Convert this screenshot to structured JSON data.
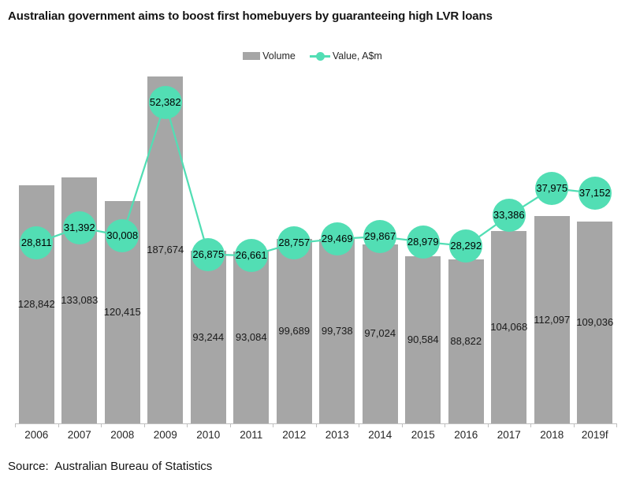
{
  "title": "Australian government aims to boost first homebuyers by guaranteeing high LVR loans",
  "legend": {
    "volume_label": "Volume",
    "value_label": "Value, A$m"
  },
  "source": "Source:  Australian Bureau of Statistics",
  "colors": {
    "bar": "#A6A6A6",
    "line": "#52DEB4",
    "axis": "#BFBFBF",
    "label_text": "#1A1A1A"
  },
  "chart_data": {
    "type": "bar",
    "subtype": "combo-bar-line",
    "title": "Australian government aims to boost first homebuyers by guaranteeing high LVR loans",
    "xlabel": "",
    "ylabel": "",
    "grid": false,
    "legend_position": "top-center",
    "data_labels": "every point labeled",
    "categories": [
      "2006",
      "2007",
      "2008",
      "2009",
      "2010",
      "2011",
      "2012",
      "2013",
      "2014",
      "2015",
      "2016",
      "2017",
      "2018",
      "2019f"
    ],
    "series": [
      {
        "name": "Volume",
        "type": "bar",
        "values": [
          128842,
          133083,
          120415,
          187674,
          93244,
          93084,
          99689,
          99738,
          97024,
          90584,
          88822,
          104068,
          112097,
          109036
        ],
        "labels": [
          "128,842",
          "133,083",
          "120,415",
          "187,674",
          "93,244",
          "93,084",
          "99,689",
          "99,738",
          "97,024",
          "90,584",
          "88,822",
          "104,068",
          "112,097",
          "109,036"
        ]
      },
      {
        "name": "Value, A$m",
        "type": "line",
        "values": [
          28811,
          31392,
          30008,
          52382,
          26875,
          26661,
          28757,
          29469,
          29867,
          28979,
          28292,
          33386,
          37975,
          37152
        ],
        "labels": [
          "28,811",
          "31,392",
          "30,008",
          "52,382",
          "26,875",
          "26,661",
          "28,757",
          "29,469",
          "29,867",
          "28,979",
          "28,292",
          "33,386",
          "37,975",
          "37,152"
        ]
      }
    ]
  }
}
